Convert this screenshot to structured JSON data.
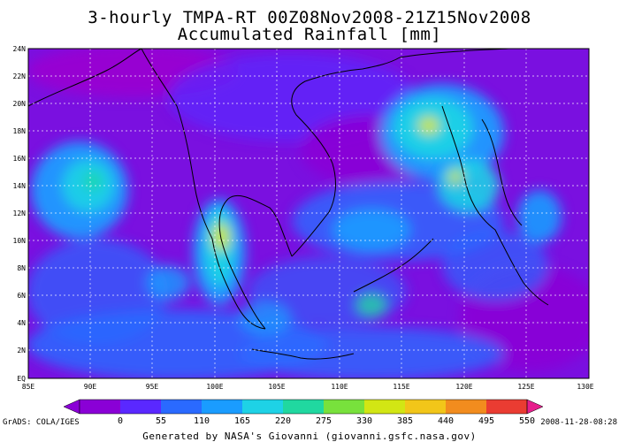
{
  "title": {
    "line1": "3-hourly TMPA-RT 00Z08Nov2008-21Z15Nov2008",
    "line2": "Accumulated Rainfall [mm]"
  },
  "map": {
    "lat_labels": [
      "24N",
      "22N",
      "20N",
      "18N",
      "16N",
      "14N",
      "12N",
      "10N",
      "8N",
      "6N",
      "4N",
      "2N",
      "EQ"
    ],
    "lon_labels": [
      "85E",
      "90E",
      "95E",
      "100E",
      "105E",
      "110E",
      "115E",
      "120E",
      "125E",
      "130E"
    ],
    "lat_range": [
      0,
      24
    ],
    "lon_range": [
      85,
      130
    ],
    "grid": true
  },
  "colorbar": {
    "labels": [
      "0",
      "55",
      "110",
      "165",
      "220",
      "275",
      "330",
      "385",
      "440",
      "495",
      "550"
    ],
    "colors": [
      "#8a00d6",
      "#5a28ff",
      "#2a6aff",
      "#1a9cff",
      "#1ed2e6",
      "#20d8a0",
      "#78e13c",
      "#d2e614",
      "#f2c619",
      "#f28c1e",
      "#ea3c32",
      "#e61e8c"
    ]
  },
  "footer": {
    "grads": "GrADS: COLA/IGES",
    "timestamp": "2008-11-28-08:28",
    "generated": "Generated by NASA's Giovanni (giovanni.gsfc.nasa.gov)"
  }
}
